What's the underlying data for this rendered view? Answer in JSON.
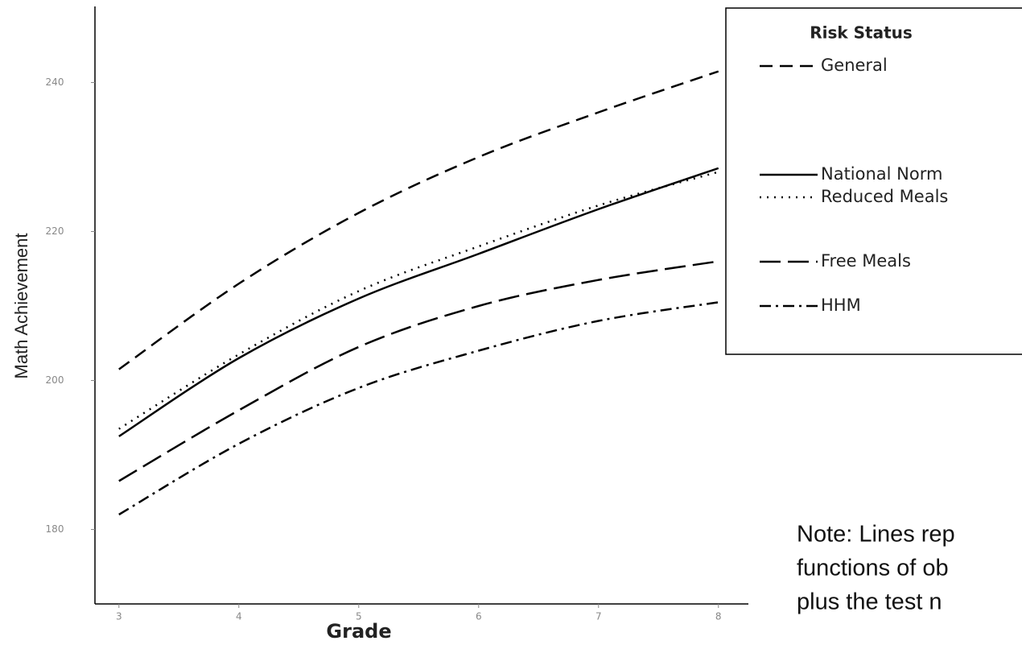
{
  "chart_data": {
    "type": "line",
    "x_label": "Grade",
    "y_label": "Math Achievement",
    "x": [
      3,
      4,
      5,
      6,
      7,
      8
    ],
    "xlim": [
      2.8,
      8.25
    ],
    "xticks": [
      3,
      4,
      5,
      6,
      7,
      8
    ],
    "ylim": [
      170,
      250
    ],
    "yticks": [
      180,
      200,
      220,
      240
    ],
    "legend_title": "Risk Status",
    "legend_position": "upper right",
    "series": [
      {
        "name": "General",
        "color": "#000000",
        "style": "dashed",
        "values": [
          201.5,
          213,
          222.5,
          230,
          236,
          241.5
        ]
      },
      {
        "name": "National Norm",
        "color": "#000000",
        "style": "solid",
        "values": [
          192.5,
          203,
          211,
          217,
          223,
          228.5
        ]
      },
      {
        "name": "Reduced Meals",
        "color": "#000000",
        "style": "dotted",
        "values": [
          193.5,
          203.5,
          212,
          218,
          223.5,
          228
        ]
      },
      {
        "name": "Free Meals",
        "color": "#000000",
        "style": "longdash",
        "values": [
          186.5,
          196,
          204.5,
          210,
          213.5,
          216
        ]
      },
      {
        "name": "HHM",
        "color": "#000000",
        "style": "dashdot",
        "values": [
          182,
          191.5,
          199,
          204,
          208,
          210.5
        ]
      }
    ],
    "note_lines": [
      "Note: Lines rep",
      "functions of ob",
      "plus the test n"
    ]
  }
}
